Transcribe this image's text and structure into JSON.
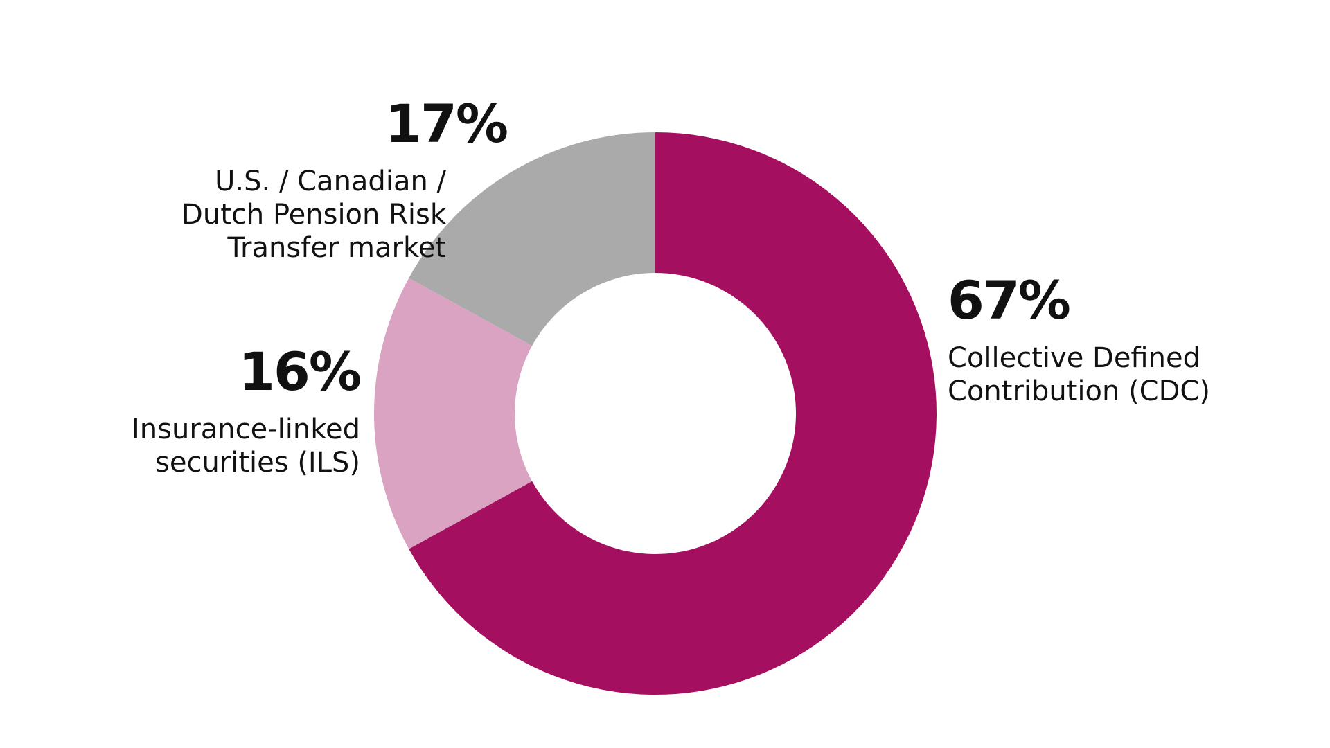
{
  "chart_data": {
    "type": "pie",
    "categories": [
      "Collective Defined\nContribution (CDC)",
      "Insurance-linked\nsecurities (ILS)",
      "U.S. / Canadian /\nDutch Pension Risk\nTransfer market"
    ],
    "values": [
      67,
      16,
      17
    ],
    "value_labels": [
      "67%",
      "16%",
      "17%"
    ],
    "colors": [
      "#a50f60",
      "#d9a3c1",
      "#aaaaaa"
    ]
  }
}
